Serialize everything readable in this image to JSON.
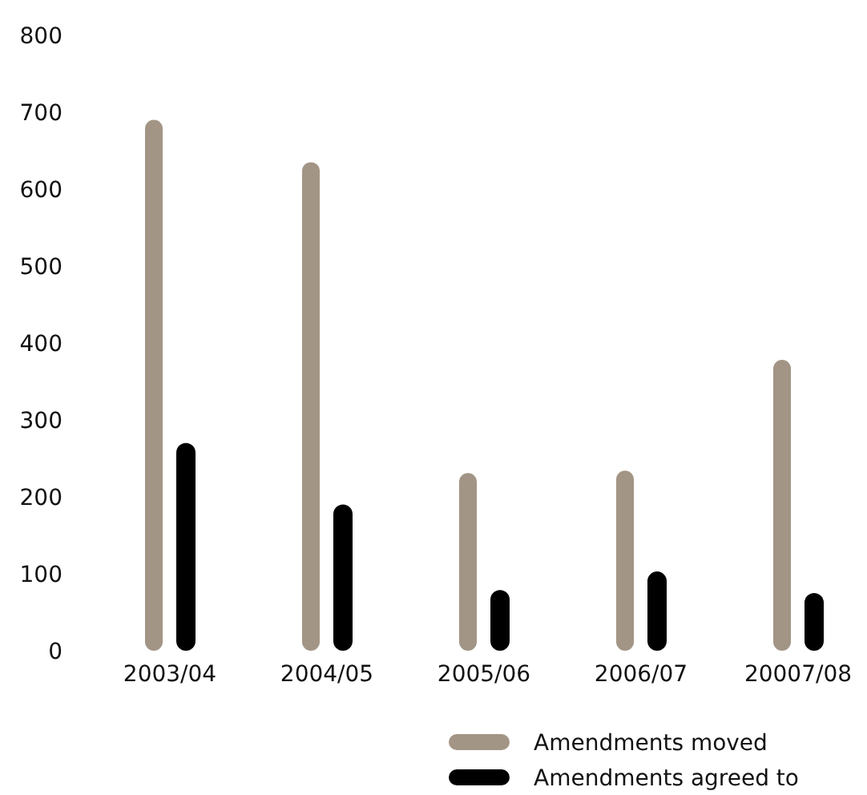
{
  "chart_data": {
    "type": "bar",
    "categories": [
      "2003/04",
      "2004/05",
      "2005/06",
      "2006/07",
      "20007/08"
    ],
    "series": [
      {
        "name": "Amendments moved",
        "color": "#a39585",
        "values": [
          690,
          635,
          231,
          234,
          378
        ]
      },
      {
        "name": "Amendments agreed to",
        "color": "#000000",
        "values": [
          270,
          190,
          79,
          103,
          75
        ]
      }
    ],
    "ylim": [
      0,
      800
    ],
    "yticks": [
      0,
      100,
      200,
      300,
      400,
      500,
      600,
      700,
      800
    ],
    "grid": false,
    "legend": "bottom right"
  }
}
